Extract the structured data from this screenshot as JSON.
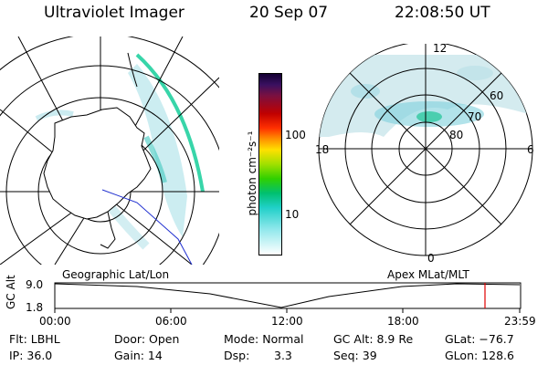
{
  "header": {
    "instrument": "Ultraviolet Imager",
    "date": "20 Sep 07",
    "time": "22:08:50 UT"
  },
  "colorbar": {
    "unit_label": "photon cm⁻²s⁻¹",
    "ticks": [
      "100",
      "10"
    ]
  },
  "apex_map": {
    "mlt_labels": {
      "top": "12",
      "left": "18",
      "right": "6",
      "bottom": "0"
    },
    "mlat_labels": [
      "60",
      "70",
      "80"
    ]
  },
  "timeline": {
    "left_label": "Geographic Lat/Lon",
    "right_label": "Apex MLat/MLT",
    "axis_label": "GC Alt",
    "y_top": "9.0",
    "y_bottom": "1.8",
    "time_ticks": [
      "00:00",
      "06:00",
      "12:00",
      "18:00",
      "23:59"
    ],
    "marker_color": "#e00000"
  },
  "info": {
    "filter": "Flt: LBHL",
    "ip": "IP: 36.0",
    "door": "Door: Open",
    "gain": "Gain: 14",
    "mode": "Mode: Normal",
    "dsp_label": "Dsp:",
    "dsp_value": "3.3",
    "gc_alt": "GC Alt: 8.9 Re",
    "seq": "Seq: 39",
    "glat": "GLat: −76.7",
    "glon": "GLon: 128.6"
  }
}
